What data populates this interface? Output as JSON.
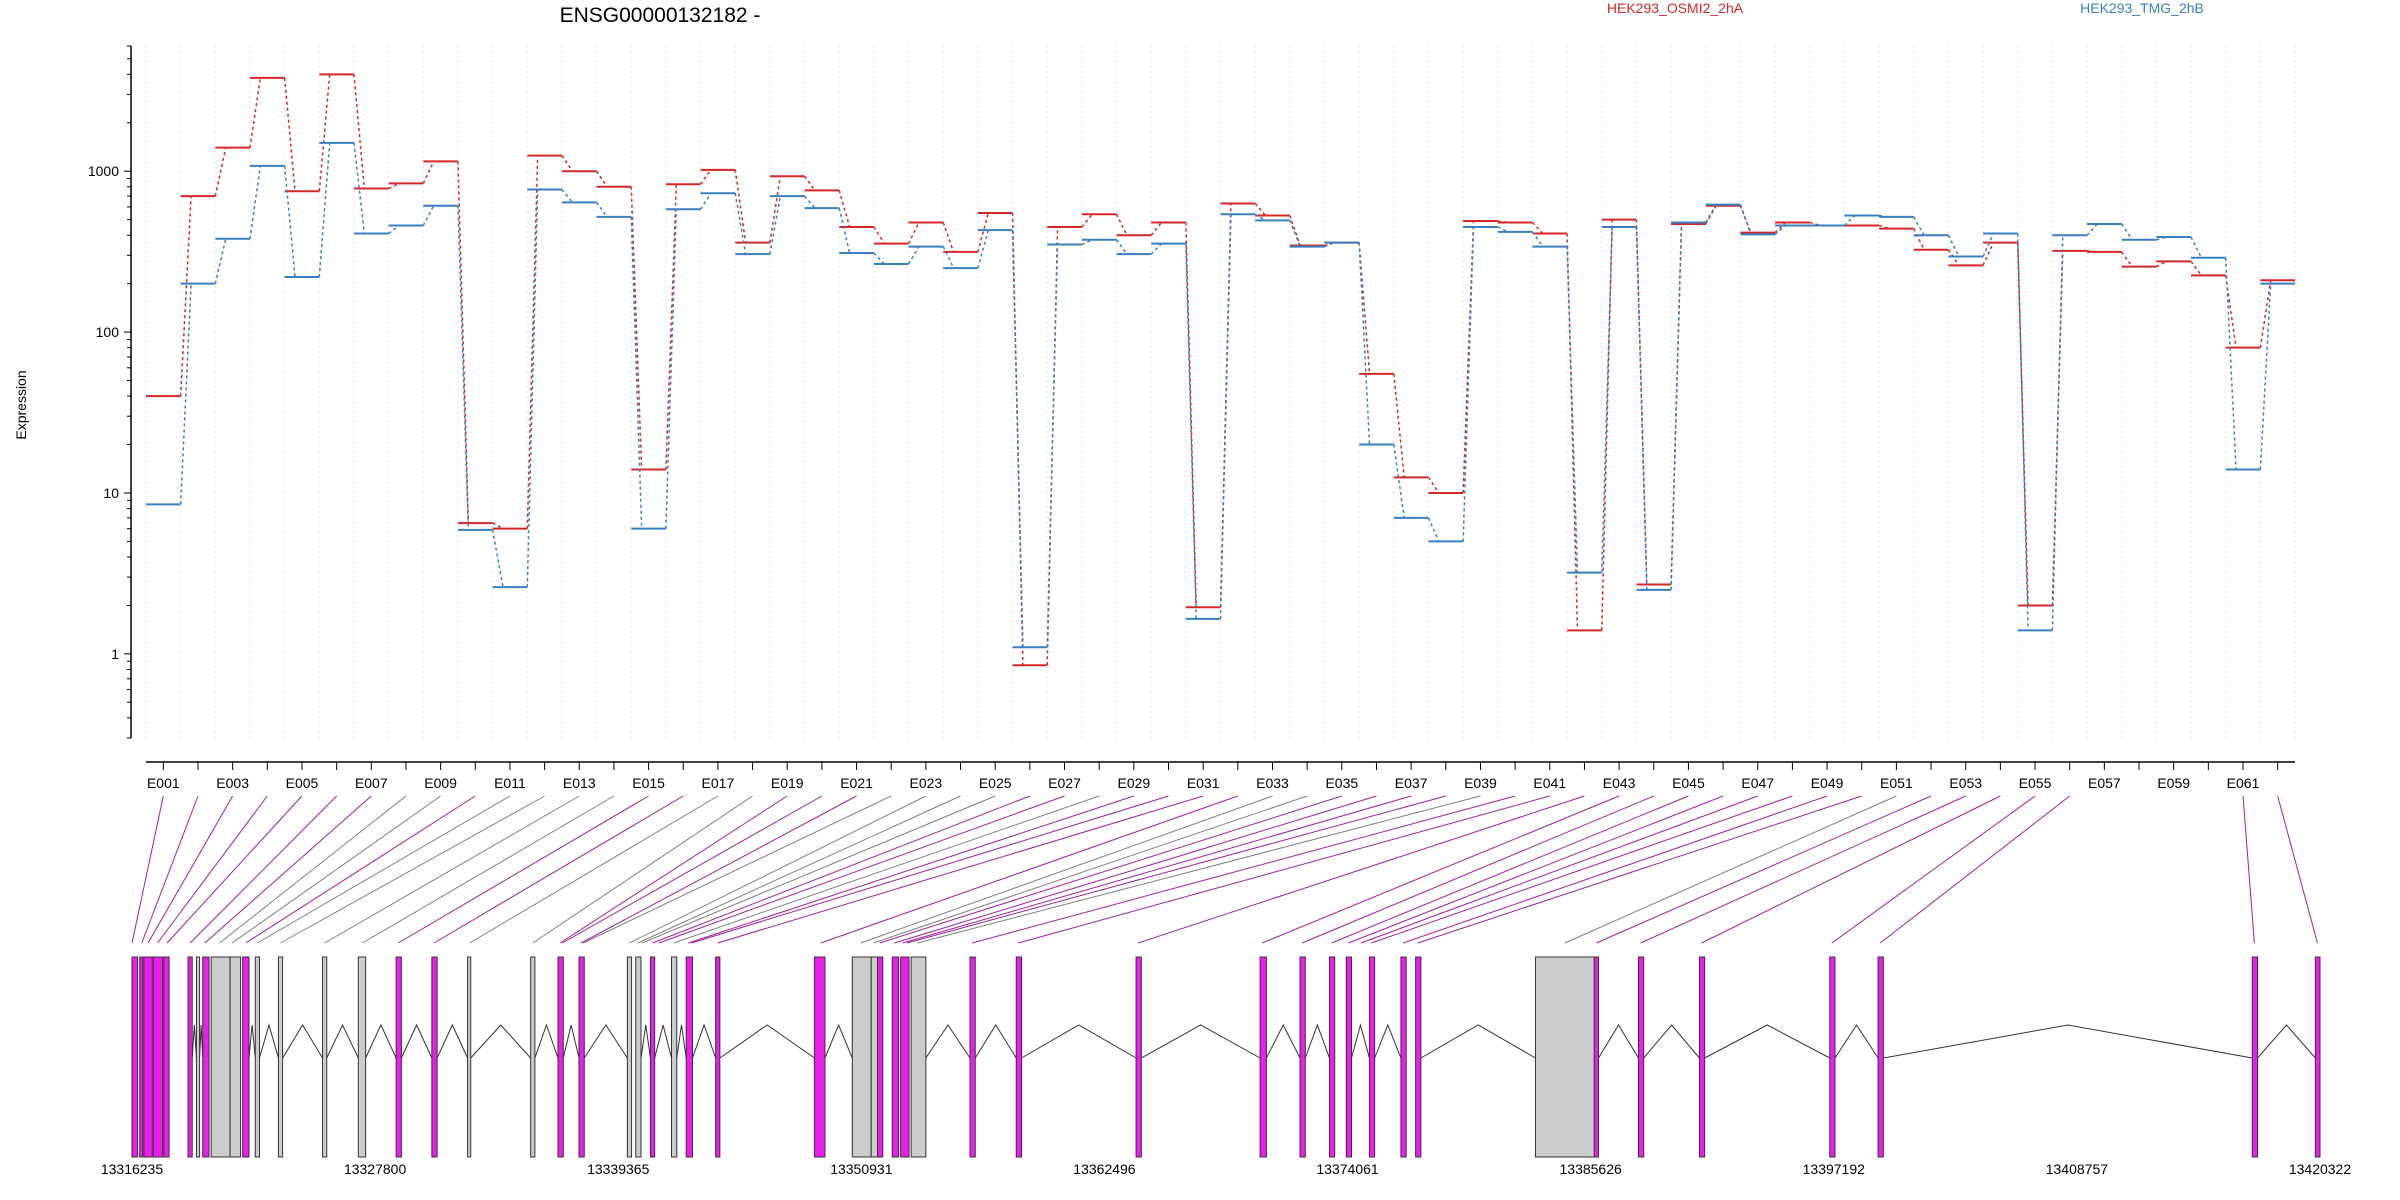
{
  "chart_data": {
    "type": "line",
    "title": "ENSG00000132182 -",
    "ylabel": "Expression",
    "y_scale": "log",
    "ylim": [
      0.3,
      6000
    ],
    "y_ticks": [
      1,
      10,
      100,
      1000
    ],
    "y_tick_labels": [
      "1",
      "10",
      "100",
      "1000"
    ],
    "exon_labels": [
      "E001",
      "E003",
      "E005",
      "E007",
      "E009",
      "E011",
      "E013",
      "E015",
      "E017",
      "E019",
      "E021",
      "E023",
      "E025",
      "E027",
      "E029",
      "E031",
      "E033",
      "E035",
      "E037",
      "E039",
      "E041",
      "E043",
      "E045",
      "E047",
      "E049",
      "E051",
      "E053",
      "E055",
      "E057",
      "E059",
      "E061"
    ],
    "genomic_ticks": [
      "13316235",
      "13327800",
      "13339365",
      "13350931",
      "13362496",
      "13374061",
      "13385626",
      "13397192",
      "13408757",
      "13420322"
    ],
    "genomic_range": [
      13316235,
      13420322
    ],
    "series": [
      {
        "name": "HEK293_OSMI2_2hA",
        "color": "#d62728",
        "values": [
          40,
          700,
          1400,
          3800,
          750,
          4000,
          780,
          840,
          1150,
          6.5,
          6,
          1250,
          1000,
          800,
          14,
          830,
          1020,
          360,
          930,
          760,
          450,
          355,
          480,
          315,
          550,
          0.85,
          450,
          540,
          400,
          480,
          1.95,
          630,
          530,
          345,
          360,
          55,
          12.5,
          10,
          490,
          480,
          410,
          1.4,
          500,
          2.7,
          470,
          610,
          415,
          480,
          460,
          460,
          440,
          325,
          260,
          360,
          2,
          320,
          315,
          255,
          275,
          225,
          80,
          210
        ]
      },
      {
        "name": "HEK293_TMG_2hB",
        "color": "#3a7fc1",
        "values": [
          8.5,
          200,
          380,
          1080,
          220,
          1500,
          410,
          460,
          610,
          5.9,
          2.6,
          770,
          640,
          520,
          6,
          580,
          730,
          305,
          700,
          590,
          310,
          265,
          340,
          250,
          430,
          1.1,
          350,
          375,
          305,
          355,
          1.65,
          540,
          495,
          340,
          360,
          20,
          7,
          5,
          450,
          420,
          340,
          3.2,
          450,
          2.5,
          480,
          620,
          405,
          460,
          460,
          530,
          520,
          400,
          295,
          410,
          1.4,
          400,
          470,
          375,
          390,
          290,
          14,
          200
        ]
      }
    ],
    "exon_tracks": [
      {
        "start": 13316235,
        "end": 13316500,
        "color": "#ee1cee"
      },
      {
        "start": 13316600,
        "end": 13316750,
        "color": "#ee1cee"
      },
      {
        "start": 13316800,
        "end": 13317200,
        "color": "#ee1cee"
      },
      {
        "start": 13317250,
        "end": 13317700,
        "color": "#ee1cee"
      },
      {
        "start": 13317750,
        "end": 13318000,
        "color": "#ee1cee"
      },
      {
        "start": 13318900,
        "end": 13319100,
        "color": "#ee1cee"
      },
      {
        "start": 13319300,
        "end": 13319450,
        "color": "#cccccc"
      },
      {
        "start": 13319600,
        "end": 13319900,
        "color": "#ee1cee"
      },
      {
        "start": 13320000,
        "end": 13320900,
        "color": "#cccccc"
      },
      {
        "start": 13320900,
        "end": 13321400,
        "color": "#cccccc"
      },
      {
        "start": 13321500,
        "end": 13321800,
        "color": "#ee1cee"
      },
      {
        "start": 13322100,
        "end": 13322300,
        "color": "#cccccc"
      },
      {
        "start": 13323200,
        "end": 13323400,
        "color": "#cccccc"
      },
      {
        "start": 13325300,
        "end": 13325500,
        "color": "#cccccc"
      },
      {
        "start": 13327000,
        "end": 13327350,
        "color": "#cccccc"
      },
      {
        "start": 13328800,
        "end": 13329050,
        "color": "#ee1cee"
      },
      {
        "start": 13330500,
        "end": 13330750,
        "color": "#ee1cee"
      },
      {
        "start": 13332200,
        "end": 13332350,
        "color": "#cccccc"
      },
      {
        "start": 13335200,
        "end": 13335400,
        "color": "#cccccc"
      },
      {
        "start": 13336500,
        "end": 13336750,
        "color": "#ee1cee"
      },
      {
        "start": 13337500,
        "end": 13337750,
        "color": "#ee1cee"
      },
      {
        "start": 13339800,
        "end": 13340000,
        "color": "#cccccc"
      },
      {
        "start": 13340200,
        "end": 13340450,
        "color": "#cccccc"
      },
      {
        "start": 13340900,
        "end": 13341100,
        "color": "#ee1cee"
      },
      {
        "start": 13341900,
        "end": 13342150,
        "color": "#cccccc"
      },
      {
        "start": 13342600,
        "end": 13342900,
        "color": "#ee1cee"
      },
      {
        "start": 13344000,
        "end": 13344200,
        "color": "#ee1cee"
      },
      {
        "start": 13348700,
        "end": 13349200,
        "color": "#ee1cee"
      },
      {
        "start": 13350500,
        "end": 13351400,
        "color": "#cccccc"
      },
      {
        "start": 13351400,
        "end": 13351700,
        "color": "#cccccc"
      },
      {
        "start": 13351700,
        "end": 13351950,
        "color": "#ee1cee"
      },
      {
        "start": 13352400,
        "end": 13352700,
        "color": "#ee1cee"
      },
      {
        "start": 13352800,
        "end": 13353200,
        "color": "#ee1cee"
      },
      {
        "start": 13353300,
        "end": 13354000,
        "color": "#cccccc"
      },
      {
        "start": 13356100,
        "end": 13356350,
        "color": "#ee1cee"
      },
      {
        "start": 13358300,
        "end": 13358550,
        "color": "#ee1cee"
      },
      {
        "start": 13364000,
        "end": 13364250,
        "color": "#ee1cee"
      },
      {
        "start": 13369900,
        "end": 13370200,
        "color": "#ee1cee"
      },
      {
        "start": 13371800,
        "end": 13372050,
        "color": "#ee1cee"
      },
      {
        "start": 13373200,
        "end": 13373450,
        "color": "#ee1cee"
      },
      {
        "start": 13374000,
        "end": 13374250,
        "color": "#ee1cee"
      },
      {
        "start": 13375100,
        "end": 13375350,
        "color": "#ee1cee"
      },
      {
        "start": 13376600,
        "end": 13376850,
        "color": "#ee1cee"
      },
      {
        "start": 13377300,
        "end": 13377550,
        "color": "#ee1cee"
      },
      {
        "start": 13383000,
        "end": 13385800,
        "color": "#cccccc"
      },
      {
        "start": 13385800,
        "end": 13386000,
        "color": "#ee1cee"
      },
      {
        "start": 13387900,
        "end": 13388150,
        "color": "#ee1cee"
      },
      {
        "start": 13390800,
        "end": 13391050,
        "color": "#ee1cee"
      },
      {
        "start": 13397000,
        "end": 13397250,
        "color": "#ee1cee"
      },
      {
        "start": 13399300,
        "end": 13399550,
        "color": "#ee1cee"
      },
      {
        "start": 13417100,
        "end": 13417350,
        "color": "#ee1cee"
      },
      {
        "start": 13420100,
        "end": 13420322,
        "color": "#ee1cee"
      }
    ],
    "intron_peaks": [
      [
        13319100,
        13319300
      ],
      [
        13319450,
        13319600
      ],
      [
        13321800,
        13322100
      ],
      [
        13322300,
        13323200
      ],
      [
        13323400,
        13325300
      ],
      [
        13325500,
        13327000
      ],
      [
        13327350,
        13328800
      ],
      [
        13329050,
        13330500
      ],
      [
        13330750,
        13332200
      ],
      [
        13332350,
        13335200
      ],
      [
        13335400,
        13336500
      ],
      [
        13336750,
        13337500
      ],
      [
        13337750,
        13339800
      ],
      [
        13340450,
        13340900
      ],
      [
        13341100,
        13341900
      ],
      [
        13342150,
        13342600
      ],
      [
        13342900,
        13344000
      ],
      [
        13344200,
        13348700
      ],
      [
        13349200,
        13350500
      ],
      [
        13354000,
        13356100
      ],
      [
        13356350,
        13358300
      ],
      [
        13358550,
        13364000
      ],
      [
        13364250,
        13369900
      ],
      [
        13370200,
        13371800
      ],
      [
        13372050,
        13373200
      ],
      [
        13374250,
        13375100
      ],
      [
        13375350,
        13376600
      ],
      [
        13377550,
        13383000
      ],
      [
        13386000,
        13387900
      ],
      [
        13388150,
        13390800
      ],
      [
        13391050,
        13397000
      ],
      [
        13397250,
        13399300
      ],
      [
        13399550,
        13417100
      ],
      [
        13417350,
        13420100
      ]
    ],
    "connector_anchors": [
      {
        "exon": 1,
        "pos": 13316235,
        "color": "#a020a0"
      },
      {
        "exon": 2,
        "pos": 13316700,
        "color": "#a020a0"
      },
      {
        "exon": 3,
        "pos": 13317000,
        "color": "#a020a0"
      },
      {
        "exon": 4,
        "pos": 13317450,
        "color": "#a020a0"
      },
      {
        "exon": 5,
        "pos": 13317900,
        "color": "#a020a0"
      },
      {
        "exon": 6,
        "pos": 13319000,
        "color": "#a020a0"
      },
      {
        "exon": 7,
        "pos": 13319700,
        "color": "#a020a0"
      },
      {
        "exon": 8,
        "pos": 13320400,
        "color": "#808080"
      },
      {
        "exon": 9,
        "pos": 13321000,
        "color": "#808080"
      },
      {
        "exon": 10,
        "pos": 13321650,
        "color": "#a020a0"
      },
      {
        "exon": 11,
        "pos": 13322200,
        "color": "#808080"
      },
      {
        "exon": 12,
        "pos": 13323300,
        "color": "#808080"
      },
      {
        "exon": 13,
        "pos": 13325400,
        "color": "#808080"
      },
      {
        "exon": 14,
        "pos": 13327200,
        "color": "#808080"
      },
      {
        "exon": 15,
        "pos": 13328900,
        "color": "#a020a0"
      },
      {
        "exon": 16,
        "pos": 13330600,
        "color": "#a020a0"
      },
      {
        "exon": 17,
        "pos": 13332300,
        "color": "#808080"
      },
      {
        "exon": 18,
        "pos": 13335300,
        "color": "#808080"
      },
      {
        "exon": 19,
        "pos": 13336600,
        "color": "#a020a0"
      },
      {
        "exon": 20,
        "pos": 13336700,
        "color": "#a020a0"
      },
      {
        "exon": 21,
        "pos": 13337600,
        "color": "#a020a0"
      },
      {
        "exon": 22,
        "pos": 13337700,
        "color": "#808080"
      },
      {
        "exon": 23,
        "pos": 13339900,
        "color": "#808080"
      },
      {
        "exon": 24,
        "pos": 13340300,
        "color": "#808080"
      },
      {
        "exon": 25,
        "pos": 13340500,
        "color": "#808080"
      },
      {
        "exon": 26,
        "pos": 13341000,
        "color": "#a020a0"
      },
      {
        "exon": 27,
        "pos": 13341300,
        "color": "#a020a0"
      },
      {
        "exon": 28,
        "pos": 13342000,
        "color": "#808080"
      },
      {
        "exon": 29,
        "pos": 13342700,
        "color": "#a020a0"
      },
      {
        "exon": 30,
        "pos": 13342850,
        "color": "#a020a0"
      },
      {
        "exon": 31,
        "pos": 13344100,
        "color": "#a020a0"
      },
      {
        "exon": 32,
        "pos": 13349000,
        "color": "#a020a0"
      },
      {
        "exon": 33,
        "pos": 13350900,
        "color": "#808080"
      },
      {
        "exon": 34,
        "pos": 13351500,
        "color": "#808080"
      },
      {
        "exon": 35,
        "pos": 13351800,
        "color": "#a020a0"
      },
      {
        "exon": 36,
        "pos": 13352500,
        "color": "#a020a0"
      },
      {
        "exon": 37,
        "pos": 13352900,
        "color": "#a020a0"
      },
      {
        "exon": 38,
        "pos": 13353100,
        "color": "#a020a0"
      },
      {
        "exon": 39,
        "pos": 13353600,
        "color": "#808080"
      },
      {
        "exon": 40,
        "pos": 13356200,
        "color": "#a020a0"
      },
      {
        "exon": 41,
        "pos": 13358400,
        "color": "#a020a0"
      },
      {
        "exon": 42,
        "pos": 13364100,
        "color": "#a020a0"
      },
      {
        "exon": 43,
        "pos": 13370000,
        "color": "#a020a0"
      },
      {
        "exon": 44,
        "pos": 13371900,
        "color": "#a020a0"
      },
      {
        "exon": 45,
        "pos": 13373300,
        "color": "#a020a0"
      },
      {
        "exon": 46,
        "pos": 13374100,
        "color": "#a020a0"
      },
      {
        "exon": 47,
        "pos": 13374700,
        "color": "#a020a0"
      },
      {
        "exon": 48,
        "pos": 13375200,
        "color": "#a020a0"
      },
      {
        "exon": 49,
        "pos": 13376700,
        "color": "#a020a0"
      },
      {
        "exon": 50,
        "pos": 13377400,
        "color": "#a020a0"
      },
      {
        "exon": 51,
        "pos": 13384400,
        "color": "#808080"
      },
      {
        "exon": 52,
        "pos": 13385900,
        "color": "#a020a0"
      },
      {
        "exon": 53,
        "pos": 13388000,
        "color": "#a020a0"
      },
      {
        "exon": 54,
        "pos": 13390900,
        "color": "#a020a0"
      },
      {
        "exon": 55,
        "pos": 13397100,
        "color": "#a020a0"
      },
      {
        "exon": 56,
        "pos": 13399400,
        "color": "#a020a0"
      },
      {
        "exon": 61,
        "pos": 13417200,
        "color": "#a020a0"
      },
      {
        "exon": 62,
        "pos": 13420200,
        "color": "#a020a0"
      }
    ]
  }
}
